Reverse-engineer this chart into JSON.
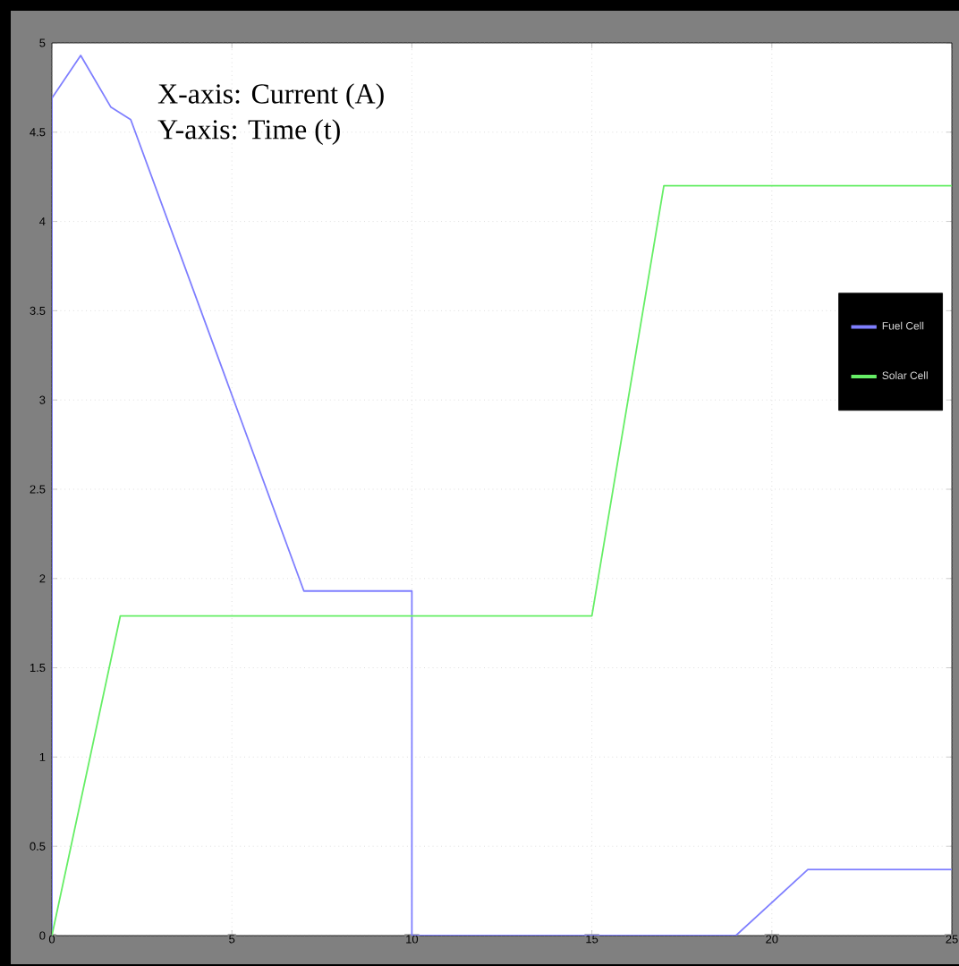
{
  "chart_data": {
    "type": "line",
    "series": [
      {
        "name": "Fuel Cell",
        "color": "#7f7fff",
        "x": [
          0,
          0,
          0.8,
          1.64,
          2.19,
          7.0,
          10.0,
          10.0,
          19.0,
          21.0,
          25
        ],
        "values": [
          0,
          4.69,
          4.93,
          4.64,
          4.57,
          1.93,
          1.93,
          0,
          0,
          0.37,
          0.37
        ]
      },
      {
        "name": "Solar Cell",
        "color": "#66ee66",
        "x": [
          0,
          1.9,
          15.0,
          17.0,
          25
        ],
        "values": [
          0,
          1.79,
          1.79,
          4.2,
          4.2
        ]
      }
    ],
    "xlim": [
      0,
      25
    ],
    "ylim": [
      0,
      5
    ],
    "xticks": [
      0,
      5,
      10,
      15,
      20,
      25
    ],
    "yticks": [
      0,
      0.5,
      1,
      1.5,
      2,
      2.5,
      3,
      3.5,
      4,
      4.5,
      5
    ],
    "grid": true,
    "legend": "right",
    "line_style": "solid",
    "marker": "none",
    "annotations": [
      "X-axis: Current (A)",
      "Y-axis: Time (t)"
    ]
  }
}
